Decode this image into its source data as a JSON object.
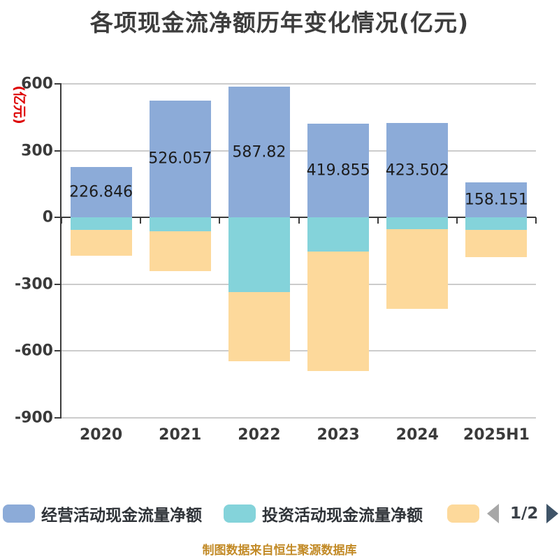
{
  "title": "各项现金流净额历年变化情况(亿元)",
  "footer_note": "制图数据来自恒生聚源数据库",
  "legend": {
    "items": [
      {
        "label": "经营活动现金流量净额",
        "color": "#8cabd8"
      },
      {
        "label": "投资活动现金流量净额",
        "color": "#84d3da"
      },
      {
        "label": "",
        "color": "#fdd99b"
      }
    ],
    "pagination": {
      "text": "1/2",
      "prev_color": "#a7a7a7",
      "next_color": "#3f5468"
    }
  },
  "chart_data": {
    "type": "bar",
    "stacked": true,
    "title": "各项现金流净额历年变化情况(亿元)",
    "ylabel": "(亿元)",
    "xlabel": "",
    "categories": [
      "2020",
      "2021",
      "2022",
      "2023",
      "2024",
      "2025H1"
    ],
    "series": [
      {
        "name": "经营活动现金流量净额",
        "key": "operating-cashflow",
        "color": "#8cabd8",
        "values": [
          226.846,
          526.057,
          587.82,
          419.855,
          423.502,
          158.151
        ],
        "labels": [
          "226.846",
          "526.057",
          "587.82",
          "419.855",
          "423.502",
          "158.151"
        ]
      },
      {
        "name": "投资活动现金流量净额",
        "key": "investing-cashflow",
        "color": "#84d3da",
        "values": [
          -55,
          -62,
          -335,
          -153,
          -53,
          -56
        ]
      },
      {
        "name": "",
        "key": "third-cashflow",
        "color": "#fdd99b",
        "values": [
          -117,
          -180,
          -310,
          -537,
          -357,
          -122
        ]
      }
    ],
    "y_ticks": [
      600,
      300,
      0,
      -300,
      -600,
      -900
    ],
    "ylim": [
      -900,
      600
    ],
    "grid": true,
    "legend_position": "bottom",
    "colors": {
      "grid_line": "#cccccc",
      "axis_line": "#3c3c3c",
      "tick_label": "#3a3a3a",
      "value_label": "#1c1c1c",
      "title": "#3d3d3d",
      "ylabel": "#dd0000",
      "footer": "#c28a26"
    }
  }
}
